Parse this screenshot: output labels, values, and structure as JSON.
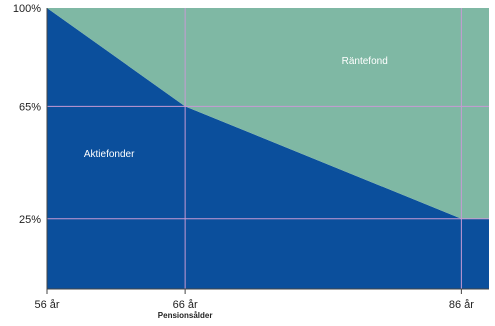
{
  "chart_data": {
    "type": "area",
    "title": "",
    "xlabel": "",
    "ylabel": "",
    "x": [
      56,
      66,
      86,
      88
    ],
    "xlim": [
      56,
      88
    ],
    "ylim": [
      0,
      100
    ],
    "x_ticks": [
      {
        "value": 56,
        "label": "56 år"
      },
      {
        "value": 66,
        "label": "66 år",
        "sublabel": "Pensionsålder"
      },
      {
        "value": 86,
        "label": "86 år"
      }
    ],
    "y_ticks": [
      {
        "value": 25,
        "label": "25%"
      },
      {
        "value": 65,
        "label": "65%"
      },
      {
        "value": 100,
        "label": "100%"
      }
    ],
    "stacked": true,
    "series": [
      {
        "name": "Aktiefonder",
        "values": [
          100,
          65,
          25,
          25
        ],
        "color": "#0b4f9c"
      },
      {
        "name": "Räntefond",
        "values": [
          0,
          35,
          75,
          75
        ],
        "color": "#7fb8a4"
      }
    ],
    "guide_color": "#c79ad4",
    "grid": false,
    "legend": "none"
  }
}
